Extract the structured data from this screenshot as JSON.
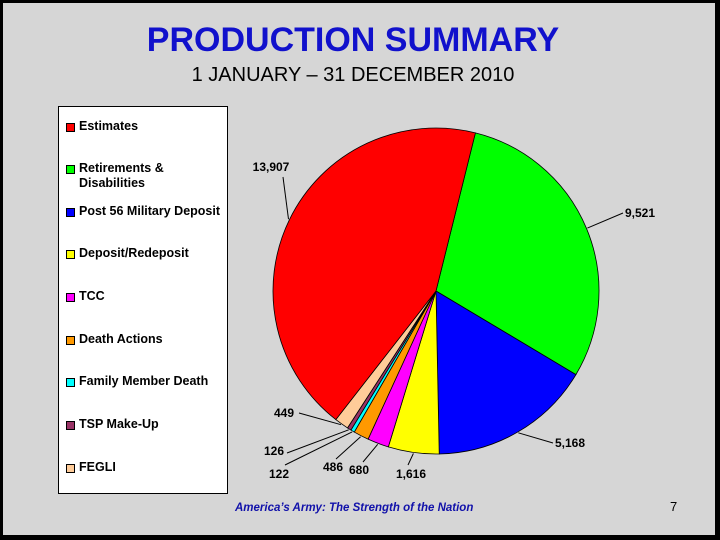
{
  "slide": {
    "title": "PRODUCTION SUMMARY",
    "subtitle": "1 JANUARY – 31 DECEMBER 2010",
    "footer": "America’s Army: The Strength of the Nation",
    "page_number": "7"
  },
  "chart_data": {
    "type": "pie",
    "title": "",
    "legend_placement": "left",
    "series": [
      {
        "name": "Estimates",
        "value": 13907,
        "label": "13,907",
        "color": "#ff0000"
      },
      {
        "name": "Retirements & Disabilities",
        "value": 9521,
        "label": "9,521",
        "color": "#00ff00"
      },
      {
        "name": "Post 56 Military Deposit",
        "value": 5168,
        "label": "5,168",
        "color": "#0000ff"
      },
      {
        "name": "Deposit/Redeposit",
        "value": 1616,
        "label": "1,616",
        "color": "#ffff00"
      },
      {
        "name": "TCC",
        "value": 680,
        "label": "680",
        "color": "#ff00ff"
      },
      {
        "name": "Death Actions",
        "value": 486,
        "label": "486",
        "color": "#ff9900"
      },
      {
        "name": "Family Member Death",
        "value": 122,
        "label": "122",
        "color": "#00ffff"
      },
      {
        "name": "TSP Make-Up",
        "value": 126,
        "label": "126",
        "color": "#993366"
      },
      {
        "name": "FEGLI",
        "value": 449,
        "label": "449",
        "color": "#ffcc99"
      }
    ]
  }
}
